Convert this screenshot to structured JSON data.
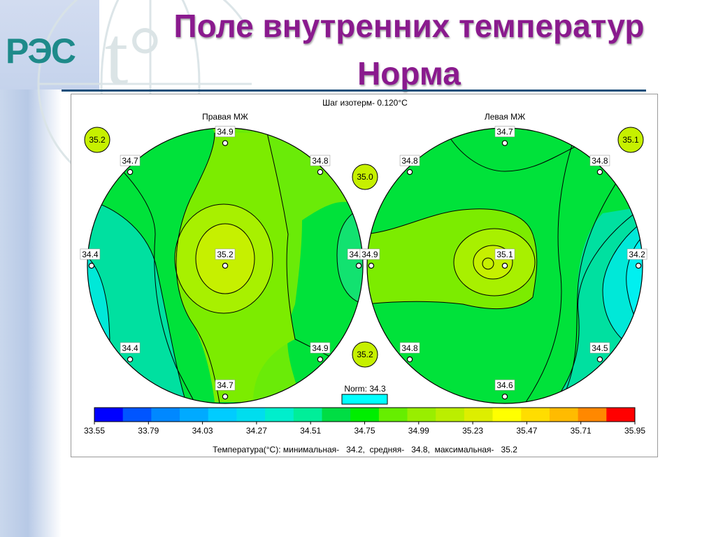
{
  "slide": {
    "title_line1": "Поле внутренних температур",
    "title_line2": "Норма",
    "logo_text": "РЭС",
    "colors": {
      "title": "#8a1a8e",
      "logo": "#1e8a8a",
      "rule": "#1a4f7a"
    }
  },
  "chart_data": {
    "type": "heatmap",
    "title": "Шаг изотерм- 0.120°C",
    "isotherm_step_c": 0.12,
    "panels": [
      {
        "name": "Правая МЖ",
        "points": [
          {
            "x": 0.0,
            "y": 0.89,
            "value": "34.9"
          },
          {
            "x": -0.69,
            "y": 0.68,
            "value": "34.7"
          },
          {
            "x": 0.69,
            "y": 0.68,
            "value": "34.8"
          },
          {
            "x": -0.97,
            "y": 0.0,
            "value": "34.4"
          },
          {
            "x": 0.0,
            "y": 0.0,
            "value": "35.2"
          },
          {
            "x": 0.97,
            "y": 0.0,
            "value": "34.7"
          },
          {
            "x": -0.69,
            "y": -0.68,
            "value": "34.4"
          },
          {
            "x": 0.69,
            "y": -0.68,
            "value": "34.9"
          },
          {
            "x": 0.0,
            "y": -0.95,
            "value": "34.7"
          }
        ],
        "corner_value": "35.2"
      },
      {
        "name": "Левая МЖ",
        "points": [
          {
            "x": 0.0,
            "y": 0.89,
            "value": "34.7"
          },
          {
            "x": -0.69,
            "y": 0.68,
            "value": "34.8"
          },
          {
            "x": 0.69,
            "y": 0.68,
            "value": "34.8"
          },
          {
            "x": -0.97,
            "y": 0.0,
            "value": "34.9"
          },
          {
            "x": 0.0,
            "y": 0.0,
            "value": "35.1"
          },
          {
            "x": 0.97,
            "y": 0.0,
            "value": "34.2"
          },
          {
            "x": -0.69,
            "y": -0.68,
            "value": "34.8"
          },
          {
            "x": 0.69,
            "y": -0.68,
            "value": "34.5"
          },
          {
            "x": 0.0,
            "y": -0.95,
            "value": "34.6"
          }
        ],
        "corner_value": "35.1"
      }
    ],
    "center_values": [
      "35.0",
      "35.2"
    ],
    "norm": {
      "label": "Norm: 34.3",
      "value": 34.3,
      "color": "#00ffff"
    },
    "colorbar": {
      "colors": [
        "#0000ff",
        "#0055ff",
        "#0088ff",
        "#00aaff",
        "#00ccff",
        "#00ddee",
        "#00eecc",
        "#00ee99",
        "#00dd44",
        "#00ee00",
        "#66ee00",
        "#99ee00",
        "#bbee00",
        "#ddee00",
        "#ffff00",
        "#ffdd00",
        "#ffbb00",
        "#ff8800",
        "#ff0000"
      ],
      "ticks": [
        "33.55",
        "33.79",
        "34.03",
        "34.27",
        "34.51",
        "34.75",
        "34.99",
        "35.23",
        "35.47",
        "35.71",
        "35.95"
      ]
    },
    "summary": "Температура(°C): минимальная-   34.2,  средняя-   34.8,  максимальная-   35.2"
  }
}
